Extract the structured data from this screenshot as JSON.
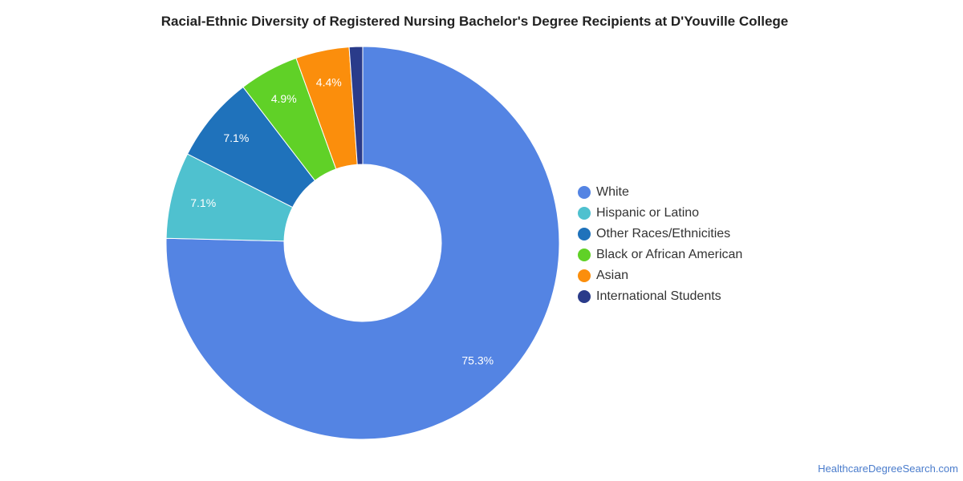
{
  "chart_data": {
    "type": "pie",
    "title": "Racial-Ethnic Diversity of Registered Nursing Bachelor's Degree Recipients at D'Youville College",
    "donut": true,
    "legend_position": "right",
    "categories": [
      "White",
      "Hispanic or Latino",
      "Other Races/Ethnicities",
      "Black or African American",
      "Asian",
      "International Students"
    ],
    "values": [
      75.3,
      7.1,
      7.1,
      4.9,
      4.4,
      1.1
    ],
    "data_labels": [
      "75.3%",
      "7.1%",
      "7.1%",
      "4.9%",
      "4.4%",
      ""
    ],
    "colors": [
      "#5484e3",
      "#4fc1cf",
      "#1f72bb",
      "#60d127",
      "#fb8e0c",
      "#2a3b8a"
    ]
  },
  "footer": {
    "source_text": "HealthcareDegreeSearch.com"
  }
}
